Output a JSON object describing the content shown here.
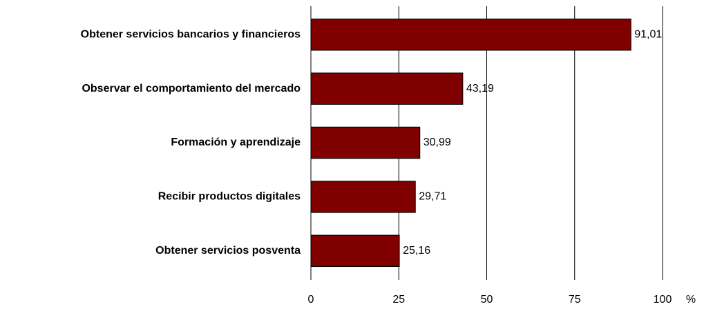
{
  "chart_data": {
    "type": "bar",
    "orientation": "horizontal",
    "categories": [
      "Obtener servicios bancarios y financieros",
      "Observar el comportamiento del mercado",
      "Formación y aprendizaje",
      "Recibir productos digitales",
      "Obtener servicios posventa"
    ],
    "values": [
      91.01,
      43.19,
      30.99,
      29.71,
      25.16
    ],
    "value_labels": [
      "91,01",
      "43,19",
      "30,99",
      "29,71",
      "25,16"
    ],
    "color": "#800000",
    "xlabel": "%",
    "xlim": [
      0,
      100
    ],
    "xticks": [
      0,
      25,
      50,
      75,
      100
    ],
    "grid": true
  }
}
